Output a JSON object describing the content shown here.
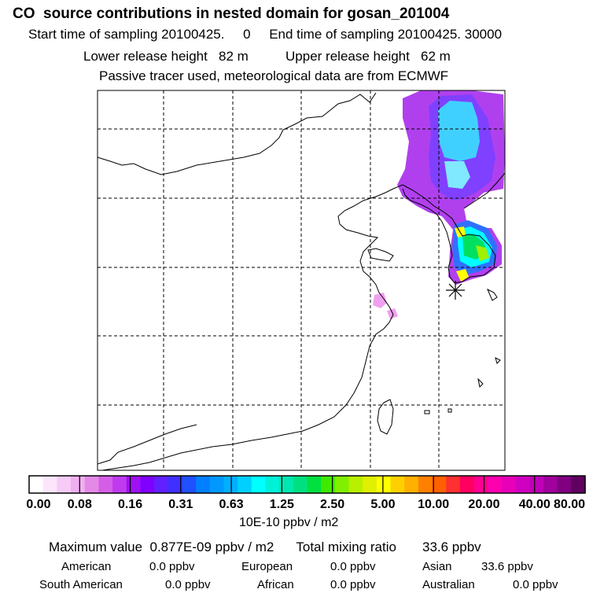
{
  "header": {
    "title": "CO  source contributions in nested domain for gosan_201004",
    "start_label": "Start time of sampling 20100425.",
    "start_value": "0",
    "end_label": "End time of sampling 20100425. 30000",
    "lower_label": "Lower release height",
    "lower_value": "82 m",
    "upper_label": "Upper release height",
    "upper_value": "62 m",
    "tracer_note": "Passive tracer used, meteorological data are from ECMWF"
  },
  "colorbar": {
    "ticks": [
      "0.00",
      "0.08",
      "0.16",
      "0.31",
      "0.63",
      "1.25",
      "2.50",
      "5.00",
      "10.00",
      "20.00",
      "40.00",
      "80.00"
    ],
    "units": "10E-10 ppbv / m2",
    "colors": [
      "#ffffff",
      "#fbe6fb",
      "#f6ccf6",
      "#f0b0f0",
      "#e38ae6",
      "#d45fe6",
      "#c03aee",
      "#a010f5",
      "#8000ff",
      "#6020ff",
      "#4030ff",
      "#2050ff",
      "#0080ff",
      "#0098ff",
      "#00b0ff",
      "#00d0ff",
      "#00ffff",
      "#00f0d8",
      "#00e8b0",
      "#00e080",
      "#00e040",
      "#40e800",
      "#80f000",
      "#b8f000",
      "#e0f000",
      "#ffff00",
      "#ffd000",
      "#ffb000",
      "#ff8000",
      "#ff6000",
      "#ff3030",
      "#ff0060",
      "#ff0090",
      "#ff00b0",
      "#e800b8",
      "#d000c0",
      "#c000b8",
      "#a0009c",
      "#800080",
      "#600060"
    ]
  },
  "summary": {
    "max_label": "Maximum value",
    "max_value": "0.877E-09 ppbv / m2",
    "total_label": "Total mixing ratio",
    "total_value": "33.6 ppbv"
  },
  "continents": [
    {
      "name": "American",
      "value": "0.0 ppbv"
    },
    {
      "name": "European",
      "value": "0.0 ppbv"
    },
    {
      "name": "Asian",
      "value": "33.6 ppbv"
    },
    {
      "name": "South American",
      "value": "0.0 ppbv"
    },
    {
      "name": "African",
      "value": "0.0 ppbv"
    },
    {
      "name": "Australian",
      "value": "0.0 ppbv"
    }
  ],
  "map": {
    "receptor_marker": "gosan-receptor-asterisk",
    "colors": {
      "pink": "#f0a0f0",
      "violet": "#b040ee",
      "purple": "#8040ff",
      "blue": "#3070ff",
      "cyan": "#40d0ff",
      "light_cyan": "#80e8ff",
      "aqua": "#00ffff",
      "green": "#00e060",
      "lime": "#a0f000",
      "yellow": "#ffff00"
    }
  }
}
